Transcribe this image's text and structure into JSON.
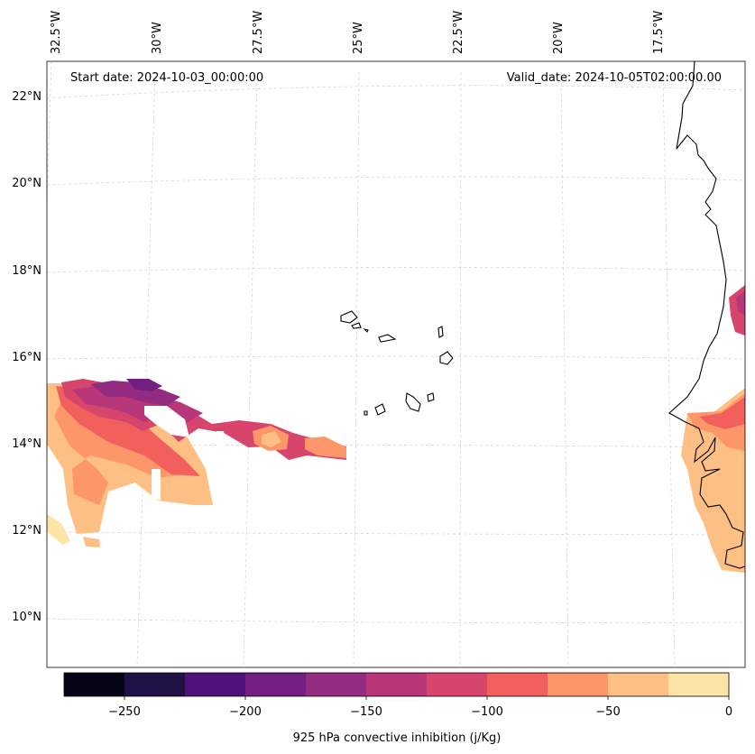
{
  "header": {
    "start_date": "Start date: 2024-10-03_00:00:00",
    "valid_date": "Valid_date: 2024-10-05T02:00:00.00"
  },
  "axes": {
    "lon_labels": [
      "32.5°W",
      "30°W",
      "27.5°W",
      "25°W",
      "22.5°W",
      "20°W",
      "17.5°W"
    ],
    "lat_labels": [
      "22°N",
      "20°N",
      "18°N",
      "16°N",
      "14°N",
      "12°N",
      "10°N"
    ]
  },
  "colorbar": {
    "title": "925 hPa convective inhibition (j/Kg)",
    "tick_labels": [
      "−250",
      "−200",
      "−150",
      "−100",
      "−50",
      "0"
    ],
    "levels": [
      -275,
      -250,
      -225,
      -200,
      -175,
      -150,
      -125,
      -100,
      -75,
      -50,
      -25,
      0
    ],
    "colors": [
      "#050416",
      "#1f1146",
      "#4f127b",
      "#721f81",
      "#932b80",
      "#b73779",
      "#d8456c",
      "#f1605d",
      "#fd9668",
      "#febf84",
      "#fde5a7"
    ]
  }
}
